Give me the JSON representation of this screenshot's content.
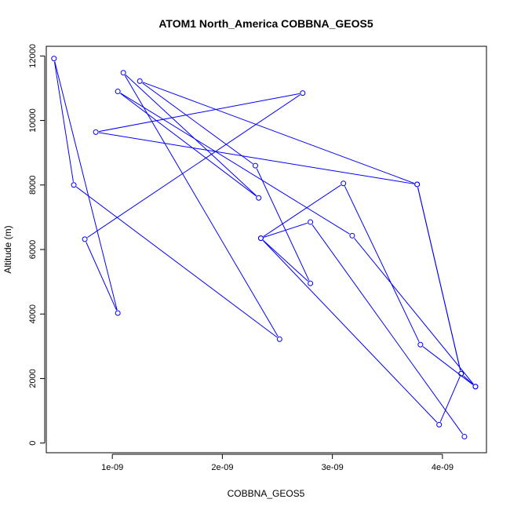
{
  "chart_data": {
    "type": "line",
    "title": "ATOM1 North_America COBBNA_GEOS5",
    "xlabel": "COBBNA_GEOS5",
    "ylabel": "Altitude (m)",
    "xlim": [
      4e-10,
      4.4e-09
    ],
    "ylim": [
      -300,
      12300
    ],
    "x_ticks": [
      {
        "value": 1e-09,
        "label": "1e-09"
      },
      {
        "value": 2e-09,
        "label": "2e-09"
      },
      {
        "value": 3e-09,
        "label": "3e-09"
      },
      {
        "value": 4e-09,
        "label": "4e-09"
      }
    ],
    "y_ticks": [
      {
        "value": 0,
        "label": "0"
      },
      {
        "value": 2000,
        "label": "2000"
      },
      {
        "value": 4000,
        "label": "4000"
      },
      {
        "value": 6000,
        "label": "6000"
      },
      {
        "value": 8000,
        "label": "8000"
      },
      {
        "value": 10000,
        "label": "10000"
      },
      {
        "value": 12000,
        "label": "12000"
      }
    ],
    "grid": false,
    "legend": "none",
    "series": [
      {
        "color": "#0000ff",
        "marker": "open-circle",
        "points": [
          {
            "x": 4.2e-09,
            "y": 200
          },
          {
            "x": 2.8e-09,
            "y": 6850
          },
          {
            "x": 2.35e-09,
            "y": 6350
          },
          {
            "x": 3.1e-09,
            "y": 8050
          },
          {
            "x": 3.8e-09,
            "y": 3050
          },
          {
            "x": 4.3e-09,
            "y": 1750
          },
          {
            "x": 3.18e-09,
            "y": 6430
          },
          {
            "x": 1.05e-09,
            "y": 10900
          },
          {
            "x": 2.33e-09,
            "y": 7600
          },
          {
            "x": 1.1e-09,
            "y": 11480
          },
          {
            "x": 2.52e-09,
            "y": 3220
          },
          {
            "x": 6.5e-10,
            "y": 8000
          },
          {
            "x": 4.7e-10,
            "y": 11920
          },
          {
            "x": 1.05e-09,
            "y": 4030
          },
          {
            "x": 7.5e-10,
            "y": 6320
          },
          {
            "x": 2.73e-09,
            "y": 10850
          },
          {
            "x": 8.5e-10,
            "y": 9640
          },
          {
            "x": 3.77e-09,
            "y": 8020
          },
          {
            "x": 4.17e-09,
            "y": 2150
          },
          {
            "x": 3.97e-09,
            "y": 570
          },
          {
            "x": 2.35e-09,
            "y": 6350
          },
          {
            "x": 2.8e-09,
            "y": 4950
          },
          {
            "x": 2.3e-09,
            "y": 8600
          },
          {
            "x": 1.25e-09,
            "y": 11220
          },
          {
            "x": 3.77e-09,
            "y": 8020
          },
          {
            "x": 4.17e-09,
            "y": 2150
          },
          {
            "x": 4.3e-09,
            "y": 1750
          }
        ]
      }
    ]
  }
}
